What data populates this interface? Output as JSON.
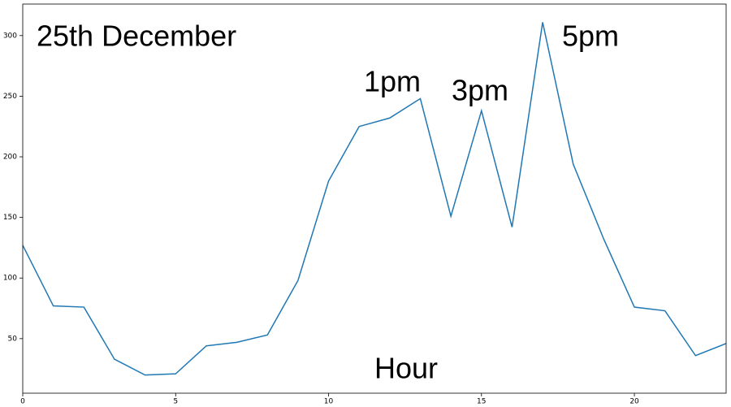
{
  "chart_data": {
    "type": "line",
    "x": [
      0,
      1,
      2,
      3,
      4,
      5,
      6,
      7,
      8,
      9,
      10,
      11,
      12,
      13,
      14,
      15,
      16,
      17,
      18,
      19,
      20,
      21,
      22,
      23
    ],
    "series": [
      {
        "color": "#1f77b4",
        "values": [
          127,
          77,
          76,
          33,
          20,
          21,
          44,
          47,
          53,
          98,
          180,
          225,
          232,
          248,
          151,
          238,
          142,
          311,
          194,
          132,
          76,
          73,
          36,
          46
        ]
      }
    ],
    "xlim": [
      0,
      23
    ],
    "ylim": [
      5,
      326
    ],
    "xticks": [
      0,
      5,
      10,
      15,
      20
    ],
    "yticks": [
      50,
      100,
      150,
      200,
      250,
      300
    ],
    "annotations": [
      "25th December",
      "1pm",
      "3pm",
      "5pm",
      "Hour"
    ]
  }
}
